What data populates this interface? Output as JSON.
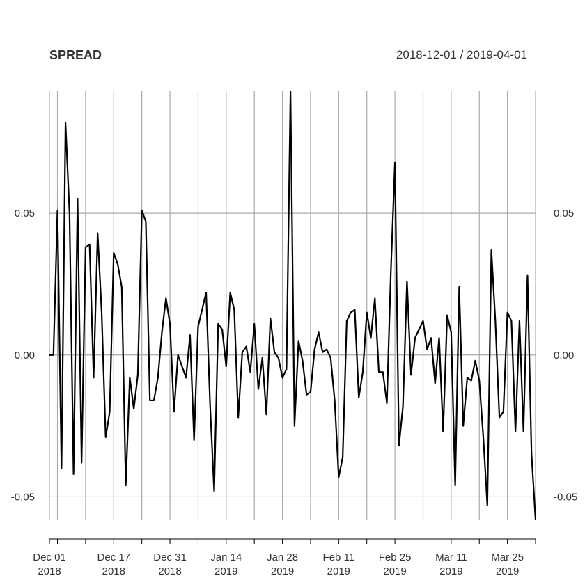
{
  "chart_data": {
    "type": "line",
    "title": "SPREAD",
    "date_range": "2018-12-01 / 2019-04-01",
    "x_start": "2018-12-01",
    "x_end": "2019-04-01",
    "ylim": [
      -0.058,
      0.093
    ],
    "grid": true,
    "legend": "none",
    "line_color": "#000000",
    "grid_color": "#aaaaaa",
    "y_ticks": [
      {
        "value": 0.05,
        "label": "0.05"
      },
      {
        "value": 0.0,
        "label": "0.00"
      },
      {
        "value": -0.05,
        "label": "-0.05"
      }
    ],
    "x_gridlines": [
      "2018-12-01",
      "2018-12-03",
      "2018-12-10",
      "2018-12-17",
      "2018-12-24",
      "2018-12-31",
      "2019-01-07",
      "2019-01-14",
      "2019-01-21",
      "2019-01-28",
      "2019-02-04",
      "2019-02-11",
      "2019-02-18",
      "2019-02-25",
      "2019-03-04",
      "2019-03-11",
      "2019-03-18",
      "2019-03-25",
      "2019-04-01"
    ],
    "x_labels": [
      {
        "date": "2018-12-01",
        "line1": "Dec 01",
        "line2": "2018"
      },
      {
        "date": "2018-12-17",
        "line1": "Dec 17",
        "line2": "2018"
      },
      {
        "date": "2018-12-31",
        "line1": "Dec 31",
        "line2": "2018"
      },
      {
        "date": "2019-01-14",
        "line1": "Jan 14",
        "line2": "2019"
      },
      {
        "date": "2019-01-28",
        "line1": "Jan 28",
        "line2": "2019"
      },
      {
        "date": "2019-02-11",
        "line1": "Feb 11",
        "line2": "2019"
      },
      {
        "date": "2019-02-25",
        "line1": "Feb 25",
        "line2": "2019"
      },
      {
        "date": "2019-03-11",
        "line1": "Mar 11",
        "line2": "2019"
      },
      {
        "date": "2019-03-25",
        "line1": "Mar 25",
        "line2": "2019"
      }
    ],
    "series": [
      {
        "points": [
          [
            "2018-12-01",
            0.0
          ],
          [
            "2018-12-02",
            0.0
          ],
          [
            "2018-12-03",
            0.051
          ],
          [
            "2018-12-04",
            -0.04
          ],
          [
            "2018-12-05",
            0.082
          ],
          [
            "2018-12-06",
            0.05
          ],
          [
            "2018-12-07",
            -0.042
          ],
          [
            "2018-12-08",
            0.055
          ],
          [
            "2018-12-09",
            -0.038
          ],
          [
            "2018-12-10",
            0.038
          ],
          [
            "2018-12-11",
            0.039
          ],
          [
            "2018-12-12",
            -0.008
          ],
          [
            "2018-12-13",
            0.043
          ],
          [
            "2018-12-14",
            0.015
          ],
          [
            "2018-12-15",
            -0.029
          ],
          [
            "2018-12-16",
            -0.02
          ],
          [
            "2018-12-17",
            0.036
          ],
          [
            "2018-12-18",
            0.032
          ],
          [
            "2018-12-19",
            0.024
          ],
          [
            "2018-12-20",
            -0.046
          ],
          [
            "2018-12-21",
            -0.008
          ],
          [
            "2018-12-22",
            -0.019
          ],
          [
            "2018-12-23",
            -0.007
          ],
          [
            "2018-12-24",
            0.051
          ],
          [
            "2018-12-25",
            0.047
          ],
          [
            "2018-12-26",
            -0.016
          ],
          [
            "2018-12-27",
            -0.016
          ],
          [
            "2018-12-28",
            -0.008
          ],
          [
            "2018-12-29",
            0.008
          ],
          [
            "2018-12-30",
            0.02
          ],
          [
            "2018-12-31",
            0.011
          ],
          [
            "2019-01-01",
            -0.02
          ],
          [
            "2019-01-02",
            0.0
          ],
          [
            "2019-01-03",
            -0.004
          ],
          [
            "2019-01-04",
            -0.008
          ],
          [
            "2019-01-05",
            0.007
          ],
          [
            "2019-01-06",
            -0.03
          ],
          [
            "2019-01-07",
            0.01
          ],
          [
            "2019-01-08",
            0.016
          ],
          [
            "2019-01-09",
            0.022
          ],
          [
            "2019-01-10",
            -0.018
          ],
          [
            "2019-01-11",
            -0.048
          ],
          [
            "2019-01-12",
            0.011
          ],
          [
            "2019-01-13",
            0.009
          ],
          [
            "2019-01-14",
            -0.004
          ],
          [
            "2019-01-15",
            0.022
          ],
          [
            "2019-01-16",
            0.016
          ],
          [
            "2019-01-17",
            -0.022
          ],
          [
            "2019-01-18",
            0.001
          ],
          [
            "2019-01-19",
            0.003
          ],
          [
            "2019-01-20",
            -0.006
          ],
          [
            "2019-01-21",
            0.011
          ],
          [
            "2019-01-22",
            -0.012
          ],
          [
            "2019-01-23",
            -0.001
          ],
          [
            "2019-01-24",
            -0.021
          ],
          [
            "2019-01-25",
            0.013
          ],
          [
            "2019-01-26",
            0.001
          ],
          [
            "2019-01-27",
            -0.001
          ],
          [
            "2019-01-28",
            -0.008
          ],
          [
            "2019-01-29",
            -0.005
          ],
          [
            "2019-01-30",
            0.093
          ],
          [
            "2019-01-31",
            -0.025
          ],
          [
            "2019-02-01",
            0.005
          ],
          [
            "2019-02-02",
            -0.002
          ],
          [
            "2019-02-03",
            -0.014
          ],
          [
            "2019-02-04",
            -0.013
          ],
          [
            "2019-02-05",
            0.002
          ],
          [
            "2019-02-06",
            0.008
          ],
          [
            "2019-02-07",
            0.001
          ],
          [
            "2019-02-08",
            0.002
          ],
          [
            "2019-02-09",
            -0.001
          ],
          [
            "2019-02-10",
            -0.016
          ],
          [
            "2019-02-11",
            -0.043
          ],
          [
            "2019-02-12",
            -0.036
          ],
          [
            "2019-02-13",
            0.012
          ],
          [
            "2019-02-14",
            0.015
          ],
          [
            "2019-02-15",
            0.016
          ],
          [
            "2019-02-16",
            -0.015
          ],
          [
            "2019-02-17",
            -0.006
          ],
          [
            "2019-02-18",
            0.015
          ],
          [
            "2019-02-19",
            0.006
          ],
          [
            "2019-02-20",
            0.02
          ],
          [
            "2019-02-21",
            -0.006
          ],
          [
            "2019-02-22",
            -0.006
          ],
          [
            "2019-02-23",
            -0.017
          ],
          [
            "2019-02-24",
            0.03
          ],
          [
            "2019-02-25",
            0.068
          ],
          [
            "2019-02-26",
            -0.032
          ],
          [
            "2019-02-27",
            -0.018
          ],
          [
            "2019-02-28",
            0.026
          ],
          [
            "2019-03-01",
            -0.007
          ],
          [
            "2019-03-02",
            0.006
          ],
          [
            "2019-03-03",
            0.009
          ],
          [
            "2019-03-04",
            0.012
          ],
          [
            "2019-03-05",
            0.002
          ],
          [
            "2019-03-06",
            0.006
          ],
          [
            "2019-03-07",
            -0.01
          ],
          [
            "2019-03-08",
            0.006
          ],
          [
            "2019-03-09",
            -0.027
          ],
          [
            "2019-03-10",
            0.014
          ],
          [
            "2019-03-11",
            0.008
          ],
          [
            "2019-03-12",
            -0.046
          ],
          [
            "2019-03-13",
            0.024
          ],
          [
            "2019-03-14",
            -0.025
          ],
          [
            "2019-03-15",
            -0.008
          ],
          [
            "2019-03-16",
            -0.009
          ],
          [
            "2019-03-17",
            -0.002
          ],
          [
            "2019-03-18",
            -0.009
          ],
          [
            "2019-03-19",
            -0.029
          ],
          [
            "2019-03-20",
            -0.053
          ],
          [
            "2019-03-21",
            0.037
          ],
          [
            "2019-03-22",
            0.012
          ],
          [
            "2019-03-23",
            -0.022
          ],
          [
            "2019-03-24",
            -0.02
          ],
          [
            "2019-03-25",
            0.015
          ],
          [
            "2019-03-26",
            0.012
          ],
          [
            "2019-03-27",
            -0.027
          ],
          [
            "2019-03-28",
            0.012
          ],
          [
            "2019-03-29",
            -0.027
          ],
          [
            "2019-03-30",
            0.028
          ],
          [
            "2019-03-31",
            -0.035
          ],
          [
            "2019-04-01",
            -0.058
          ]
        ]
      }
    ]
  }
}
